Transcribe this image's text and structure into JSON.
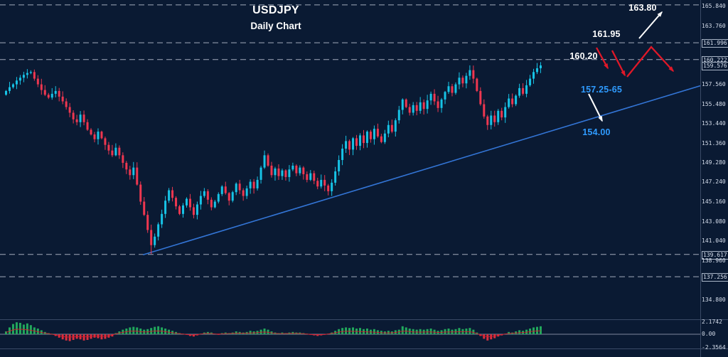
{
  "window": {
    "title": "USDJPY",
    "subtitle": "Daily Chart"
  },
  "colors": {
    "background": "#0a1a33",
    "bull": "#17c3e6",
    "bear": "#ef3750",
    "trendline": "#3375d6",
    "level_line": "#c7cfdd",
    "annotation_white": "#ffffff",
    "annotation_blue": "#2f9bff",
    "projection_red": "#e01828",
    "hist_up": "#22a85c",
    "hist_down": "#d8303f",
    "separator": "#3a4a66",
    "zero_line": "#8a93a8"
  },
  "annotations": {
    "target": "163.80",
    "resistance_upper": "161.95",
    "resistance_lower": "160.20",
    "support_zone": "157.25-65",
    "trendline_support": "154.00"
  },
  "chart_data": {
    "type": "candlestick",
    "symbol": "USDJPY",
    "timeframe": "Daily",
    "title": "USDJPY Daily Chart",
    "y_axis": [
      {
        "text": "165.840",
        "price": 165.84,
        "boxed": false
      },
      {
        "text": "163.760",
        "price": 163.76,
        "boxed": false
      },
      {
        "text": "161.996",
        "price": 161.996,
        "boxed": true
      },
      {
        "text": "160.222",
        "price": 160.222,
        "boxed": true
      },
      {
        "text": "159.576",
        "price": 159.576,
        "boxed": true
      },
      {
        "text": "157.560",
        "price": 157.56,
        "boxed": false
      },
      {
        "text": "155.480",
        "price": 155.48,
        "boxed": false
      },
      {
        "text": "153.440",
        "price": 153.44,
        "boxed": false
      },
      {
        "text": "151.360",
        "price": 151.36,
        "boxed": false
      },
      {
        "text": "149.280",
        "price": 149.28,
        "boxed": false
      },
      {
        "text": "147.240",
        "price": 147.24,
        "boxed": false
      },
      {
        "text": "145.160",
        "price": 145.16,
        "boxed": false
      },
      {
        "text": "143.080",
        "price": 143.08,
        "boxed": false
      },
      {
        "text": "141.040",
        "price": 141.04,
        "boxed": false
      },
      {
        "text": "139.617",
        "price": 139.617,
        "boxed": true
      },
      {
        "text": "138.960",
        "price": 138.96,
        "boxed": false
      },
      {
        "text": "137.256",
        "price": 137.256,
        "boxed": true
      },
      {
        "text": "134.800",
        "price": 134.8,
        "boxed": false
      }
    ],
    "levels": [
      {
        "price": 166.0
      },
      {
        "price": 161.996
      },
      {
        "price": 160.222
      },
      {
        "price": 139.617
      },
      {
        "price": 137.256
      }
    ],
    "trendline": {
      "start_index": 39,
      "start_price": 139.58,
      "end_price": 157.45
    },
    "candles": {
      "first_open": 156.5,
      "closes": [
        156.9,
        157.3,
        157.6,
        158.0,
        158.3,
        158.6,
        158.8,
        158.9,
        158.2,
        157.6,
        157.0,
        156.5,
        156.2,
        156.6,
        156.9,
        156.3,
        155.8,
        155.2,
        154.6,
        153.9,
        153.6,
        154.4,
        153.6,
        152.8,
        152.3,
        151.8,
        152.6,
        151.9,
        151.2,
        150.6,
        150.1,
        150.9,
        150.1,
        149.3,
        148.6,
        148.0,
        148.8,
        147.0,
        145.2,
        143.8,
        142.2,
        140.6,
        141.5,
        142.8,
        143.9,
        145.3,
        146.4,
        145.6,
        144.7,
        143.9,
        144.8,
        145.5,
        144.6,
        143.8,
        144.9,
        145.8,
        146.3,
        145.4,
        144.6,
        145.2,
        146.0,
        146.8,
        146.1,
        145.3,
        146.2,
        147.1,
        146.4,
        145.8,
        146.6,
        147.3,
        146.6,
        147.5,
        148.8,
        150.1,
        149.0,
        148.0,
        148.7,
        147.9,
        148.5,
        147.8,
        148.6,
        149.0,
        148.2,
        148.8,
        148.1,
        147.5,
        148.2,
        147.4,
        146.8,
        147.5,
        146.9,
        146.3,
        147.2,
        148.4,
        149.6,
        150.8,
        151.6,
        150.7,
        151.9,
        151.1,
        152.2,
        151.4,
        152.6,
        151.8,
        152.9,
        152.1,
        151.5,
        152.4,
        153.3,
        152.6,
        153.8,
        154.9,
        156.0,
        155.2,
        154.6,
        155.4,
        154.8,
        155.7,
        155.0,
        155.9,
        156.6,
        155.8,
        155.1,
        156.0,
        156.8,
        157.4,
        156.7,
        157.6,
        158.3,
        157.7,
        158.5,
        159.1,
        158.2,
        156.9,
        155.5,
        154.2,
        153.3,
        154.3,
        153.6,
        154.8,
        154.1,
        155.2,
        156.1,
        155.5,
        156.4,
        157.2,
        156.6,
        157.5,
        158.2,
        158.9,
        159.3,
        159.6
      ],
      "wick_overrides": {
        "41": {
          "low": 139.66
        },
        "73": {
          "high": 150.6
        },
        "151": {
          "high": 159.95
        }
      }
    },
    "indicator": {
      "values": [
        0.5,
        1.2,
        1.8,
        2.1,
        2.0,
        1.7,
        1.9,
        1.6,
        1.2,
        1.0,
        0.7,
        0.4,
        0.2,
        0.1,
        -0.3,
        -0.6,
        -0.9,
        -1.1,
        -1.2,
        -1.0,
        -0.8,
        -0.9,
        -1.1,
        -1.0,
        -0.8,
        -0.6,
        -0.7,
        -0.9,
        -0.8,
        -0.6,
        -0.4,
        0.2,
        0.5,
        0.8,
        1.0,
        1.2,
        1.3,
        1.2,
        1.0,
        0.8,
        0.9,
        1.1,
        1.3,
        1.4,
        1.2,
        1.0,
        0.8,
        0.6,
        0.4,
        0.2,
        0.1,
        -0.1,
        -0.3,
        -0.4,
        -0.2,
        0.1,
        0.3,
        0.4,
        0.3,
        0.1,
        -0.1,
        0.2,
        0.3,
        0.2,
        0.3,
        0.5,
        0.4,
        0.3,
        0.4,
        0.6,
        0.5,
        0.6,
        0.8,
        1.0,
        0.8,
        0.5,
        0.3,
        0.2,
        0.3,
        0.2,
        0.3,
        0.4,
        0.3,
        0.3,
        0.2,
        0.1,
        -0.1,
        -0.2,
        -0.3,
        -0.2,
        -0.1,
        0.1,
        0.3,
        0.6,
        0.9,
        1.1,
        1.2,
        1.1,
        1.2,
        1.0,
        1.1,
        0.9,
        1.0,
        0.8,
        0.9,
        0.7,
        0.6,
        0.5,
        0.6,
        0.5,
        0.7,
        0.8,
        1.4,
        1.2,
        1.0,
        0.9,
        0.8,
        0.9,
        0.8,
        0.9,
        1.0,
        0.8,
        0.6,
        0.7,
        0.9,
        1.0,
        0.8,
        0.9,
        1.1,
        0.9,
        1.0,
        1.1,
        0.8,
        0.3,
        -0.3,
        -0.8,
        -1.1,
        -0.9,
        -0.7,
        -0.4,
        -0.2,
        0.1,
        0.4,
        0.3,
        0.5,
        0.7,
        0.6,
        0.8,
        1.0,
        1.2,
        1.3,
        1.4
      ],
      "labels": [
        {
          "text": "2.1742",
          "value": 2.1742
        },
        {
          "text": "0.00",
          "value": 0
        },
        {
          "text": "-2.3564",
          "value": -2.3564
        }
      ]
    }
  }
}
